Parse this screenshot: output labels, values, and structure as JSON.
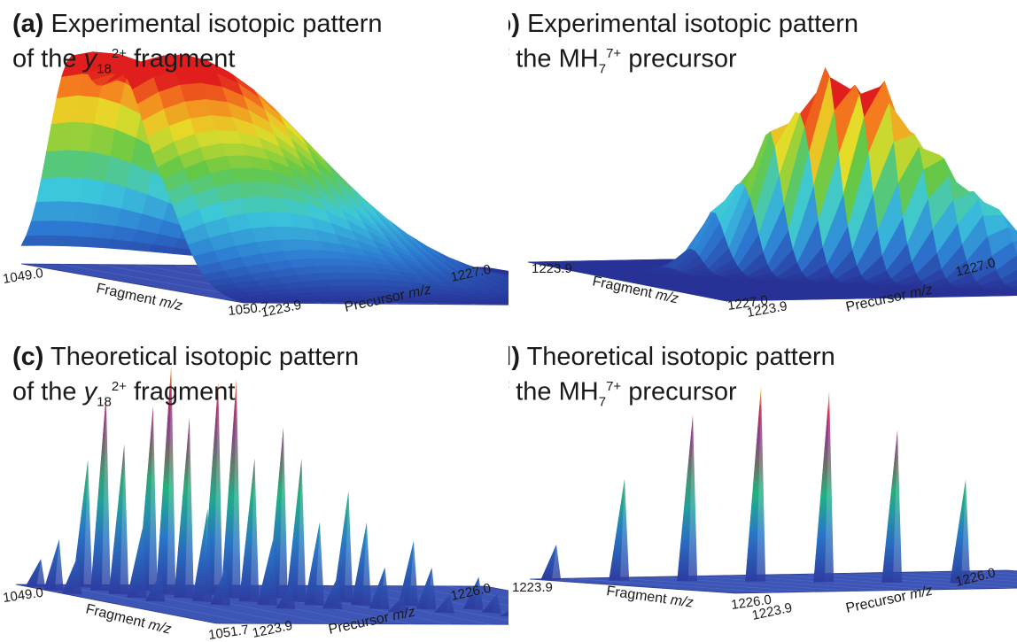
{
  "chart_data": [
    {
      "panel": "a",
      "type": "surface",
      "label": "(a)",
      "title_pre": "Experimental isotopic pattern",
      "title_line2_pre": "of the ",
      "title_symbol": "y",
      "title_sub": "18",
      "title_sup": "2+",
      "title_post": " fragment",
      "x_label_pre": "Fragment ",
      "x_label_italic": "m/z",
      "y_label_pre": "Precursor ",
      "y_label_italic": "m/z",
      "x_tick_start": "1049.0",
      "x_tick_end": "1050.7",
      "y_tick_start": "1223.9",
      "y_tick_end": "1227.0",
      "xlim": [
        1049.0,
        1050.7
      ],
      "ylim": [
        1223.9,
        1227.0
      ],
      "colormap": "jet",
      "peaks": [
        {
          "x": 0.22,
          "y": 0.05,
          "height": 1.0,
          "sx": 0.1,
          "sy": 0.28
        },
        {
          "x": 0.46,
          "y": 0.12,
          "height": 1.0,
          "sx": 0.1,
          "sy": 0.28
        },
        {
          "x": 0.66,
          "y": 0.18,
          "height": 0.45,
          "sx": 0.09,
          "sy": 0.24
        },
        {
          "x": 0.84,
          "y": 0.32,
          "height": 0.1,
          "sx": 0.07,
          "sy": 0.2
        }
      ]
    },
    {
      "panel": "b",
      "type": "surface",
      "label": "(b)",
      "title_pre": "Experimental isotopic pattern",
      "title_line2_pre": "of the MH",
      "title_symbol": "",
      "title_sub": "7",
      "title_sup": "7+",
      "title_post": " precursor",
      "x_label_pre": "Fragment ",
      "x_label_italic": "m/z",
      "y_label_pre": "Precursor ",
      "y_label_italic": "m/z",
      "x_tick_start": "1223.9",
      "x_tick_end": "1227.0",
      "y_tick_start": "1223.9",
      "y_tick_end": "1227.0",
      "xlim": [
        1223.9,
        1227.0
      ],
      "ylim": [
        1223.9,
        1227.0
      ],
      "colormap": "jet",
      "peaks": [
        {
          "x": 0.3,
          "y": 0.3,
          "height": 0.35,
          "sx": 0.05,
          "sy": 0.05
        },
        {
          "x": 0.38,
          "y": 0.38,
          "height": 0.72,
          "sx": 0.05,
          "sy": 0.05
        },
        {
          "x": 0.46,
          "y": 0.46,
          "height": 1.0,
          "sx": 0.05,
          "sy": 0.05
        },
        {
          "x": 0.54,
          "y": 0.54,
          "height": 0.95,
          "sx": 0.05,
          "sy": 0.05
        },
        {
          "x": 0.62,
          "y": 0.62,
          "height": 0.62,
          "sx": 0.05,
          "sy": 0.05
        },
        {
          "x": 0.7,
          "y": 0.7,
          "height": 0.4,
          "sx": 0.05,
          "sy": 0.05
        },
        {
          "x": 0.78,
          "y": 0.78,
          "height": 0.2,
          "sx": 0.05,
          "sy": 0.05
        },
        {
          "x": 0.86,
          "y": 0.86,
          "height": 0.08,
          "sx": 0.05,
          "sy": 0.05
        }
      ]
    },
    {
      "panel": "c",
      "type": "surface",
      "label": "(c)",
      "title_pre": "Theoretical isotopic pattern",
      "title_line2_pre": "of the ",
      "title_symbol": "y",
      "title_sub": "18",
      "title_sup": "2+",
      "title_post": " fragment",
      "x_label_pre": "Fragment ",
      "x_label_italic": "m/z",
      "y_label_pre": "Precursor ",
      "y_label_italic": "m/z",
      "x_tick_start": "1049.0",
      "x_tick_end": "1051.7",
      "y_tick_start": "1223.9",
      "y_tick_end": "1226.0",
      "xlim": [
        1049.0,
        1051.7
      ],
      "ylim": [
        1223.9,
        1226.0
      ],
      "colormap": "parula-like",
      "spikes": [
        {
          "i": 0,
          "j": 0,
          "height": 0.12
        },
        {
          "i": 1,
          "j": 0,
          "height": 0.22
        },
        {
          "i": 2,
          "j": 0,
          "height": 0.16
        },
        {
          "i": 0,
          "j": 1,
          "height": 0.55
        },
        {
          "i": 1,
          "j": 1,
          "height": 0.85
        },
        {
          "i": 2,
          "j": 1,
          "height": 0.65
        },
        {
          "i": 3,
          "j": 1,
          "height": 0.3
        },
        {
          "i": 4,
          "j": 1,
          "height": 0.12
        },
        {
          "i": 1,
          "j": 2,
          "height": 0.8
        },
        {
          "i": 2,
          "j": 2,
          "height": 1.0
        },
        {
          "i": 3,
          "j": 2,
          "height": 0.78
        },
        {
          "i": 4,
          "j": 2,
          "height": 0.4
        },
        {
          "i": 5,
          "j": 2,
          "height": 0.16
        },
        {
          "i": 2,
          "j": 3,
          "height": 0.92
        },
        {
          "i": 3,
          "j": 3,
          "height": 0.95
        },
        {
          "i": 4,
          "j": 3,
          "height": 0.62
        },
        {
          "i": 5,
          "j": 3,
          "height": 0.28
        },
        {
          "i": 6,
          "j": 3,
          "height": 0.1
        },
        {
          "i": 3,
          "j": 4,
          "height": 0.74
        },
        {
          "i": 4,
          "j": 4,
          "height": 0.62
        },
        {
          "i": 5,
          "j": 4,
          "height": 0.36
        },
        {
          "i": 6,
          "j": 4,
          "height": 0.14
        },
        {
          "i": 4,
          "j": 5,
          "height": 0.48
        },
        {
          "i": 5,
          "j": 5,
          "height": 0.36
        },
        {
          "i": 6,
          "j": 5,
          "height": 0.18
        },
        {
          "i": 7,
          "j": 5,
          "height": 0.07
        },
        {
          "i": 5,
          "j": 6,
          "height": 0.28
        },
        {
          "i": 6,
          "j": 6,
          "height": 0.18
        },
        {
          "i": 7,
          "j": 6,
          "height": 0.08
        },
        {
          "i": 6,
          "j": 7,
          "height": 0.14
        },
        {
          "i": 7,
          "j": 7,
          "height": 0.08
        },
        {
          "i": 8,
          "j": 7,
          "height": 0.04
        },
        {
          "i": 7,
          "j": 8,
          "height": 0.06
        },
        {
          "i": 8,
          "j": 8,
          "height": 0.04
        },
        {
          "i": 8,
          "j": 9,
          "height": 0.03
        },
        {
          "i": 9,
          "j": 9,
          "height": 0.02
        }
      ]
    },
    {
      "panel": "d",
      "type": "surface",
      "label": "(d)",
      "title_pre": "Theoretical isotopic pattern",
      "title_line2_pre": "of the MH",
      "title_symbol": "",
      "title_sub": "7",
      "title_sup": "7+",
      "title_post": " precursor",
      "x_label_pre": "Fragment ",
      "x_label_italic": "m/z",
      "y_label_pre": "Precursor ",
      "y_label_italic": "m/z",
      "x_tick_start": "1223.9",
      "x_tick_end": "1226.0",
      "y_tick_start": "1223.9",
      "y_tick_end": "1226.0",
      "xlim": [
        1223.9,
        1226.0
      ],
      "ylim": [
        1223.9,
        1226.0
      ],
      "colormap": "parula-like",
      "spikes": [
        {
          "i": 0,
          "j": 0,
          "height": 0.18
        },
        {
          "i": 1,
          "j": 1,
          "height": 0.52
        },
        {
          "i": 2,
          "j": 2,
          "height": 0.85
        },
        {
          "i": 3,
          "j": 3,
          "height": 1.0
        },
        {
          "i": 4,
          "j": 4,
          "height": 0.98
        },
        {
          "i": 5,
          "j": 5,
          "height": 0.78
        },
        {
          "i": 6,
          "j": 6,
          "height": 0.53
        },
        {
          "i": 7,
          "j": 7,
          "height": 0.32
        },
        {
          "i": 8,
          "j": 8,
          "height": 0.17
        },
        {
          "i": 9,
          "j": 9,
          "height": 0.08
        }
      ]
    }
  ]
}
